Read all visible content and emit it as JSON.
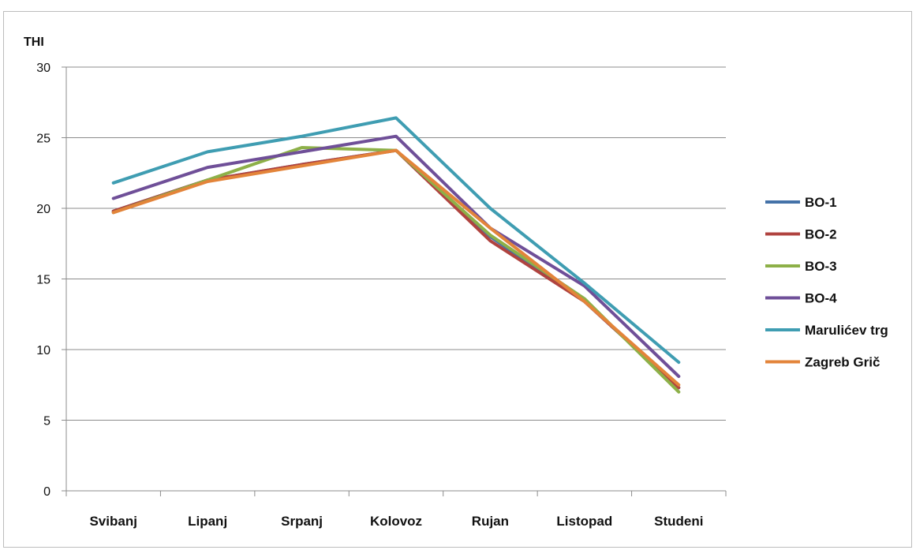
{
  "chart_data": {
    "type": "line",
    "ylabel": "THI",
    "categories": [
      "Svibanj",
      "Lipanj",
      "Srpanj",
      "Kolovoz",
      "Rujan",
      "Listopad",
      "Studeni"
    ],
    "ylim": [
      0,
      30
    ],
    "yticks": [
      0,
      5,
      10,
      15,
      20,
      25,
      30
    ],
    "grid": true,
    "legend_position": "right",
    "series": [
      {
        "name": "BO-1",
        "color": "#4472A8",
        "values": [
          19.8,
          22.0,
          23.1,
          24.1,
          18.0,
          13.4,
          7.3
        ]
      },
      {
        "name": "BO-2",
        "color": "#B0433F",
        "values": [
          19.8,
          22.0,
          23.1,
          24.1,
          17.7,
          13.4,
          7.3
        ]
      },
      {
        "name": "BO-3",
        "color": "#8DB048",
        "values": [
          19.7,
          22.0,
          24.3,
          24.1,
          18.1,
          13.6,
          7.0
        ]
      },
      {
        "name": "BO-4",
        "color": "#6F4F98",
        "values": [
          20.7,
          22.9,
          24.0,
          25.1,
          18.6,
          14.5,
          8.1
        ]
      },
      {
        "name": "Marulićev trg",
        "color": "#3F9DB2",
        "values": [
          21.8,
          24.0,
          25.1,
          26.4,
          20.0,
          14.7,
          9.1
        ]
      },
      {
        "name": "Zagreb Grič",
        "color": "#E3843A",
        "values": [
          19.7,
          21.9,
          23.0,
          24.1,
          18.6,
          13.4,
          7.5
        ]
      }
    ]
  }
}
